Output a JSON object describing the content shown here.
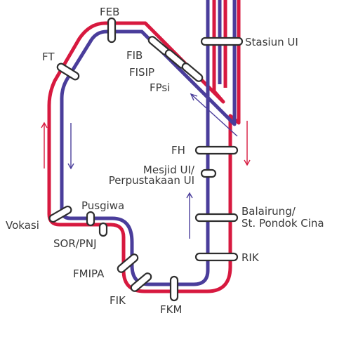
{
  "colors": {
    "red_line": "#d7193f",
    "blue_line": "#4a3d9b",
    "station_fill": "#ffffff",
    "station_stroke": "#2e2e2e",
    "label": "#3a3a3a",
    "background": "#ffffff"
  },
  "stations": [
    {
      "id": "feb",
      "label": "FEB"
    },
    {
      "id": "fib",
      "label": "FIB"
    },
    {
      "id": "fisip",
      "label": "FISIP"
    },
    {
      "id": "fpsi",
      "label": "FPsi"
    },
    {
      "id": "stasiun-ui",
      "label": "Stasiun UI"
    },
    {
      "id": "ft",
      "label": "FT"
    },
    {
      "id": "fh",
      "label": "FH"
    },
    {
      "id": "mesjid-ui",
      "label_lines": [
        "Mesjid UI/",
        "Perpustakaan UI"
      ]
    },
    {
      "id": "balairung",
      "label_lines": [
        "Balairung/",
        "St. Pondok Cina"
      ]
    },
    {
      "id": "vokasi",
      "label": "Vokasi"
    },
    {
      "id": "pusgiwa",
      "label": "Pusgiwa"
    },
    {
      "id": "sor-pnj",
      "label": "SOR/PNJ"
    },
    {
      "id": "rik",
      "label": "RIK"
    },
    {
      "id": "fmipa",
      "label": "FMIPA"
    },
    {
      "id": "fik",
      "label": "FIK"
    },
    {
      "id": "fkm",
      "label": "FKM"
    }
  ],
  "direction_arrows": [
    {
      "line": "red",
      "direction": "up"
    },
    {
      "line": "blue",
      "direction": "down"
    },
    {
      "line": "blue",
      "direction": "up-left"
    },
    {
      "line": "red",
      "direction": "down"
    },
    {
      "line": "blue",
      "direction": "up"
    }
  ]
}
